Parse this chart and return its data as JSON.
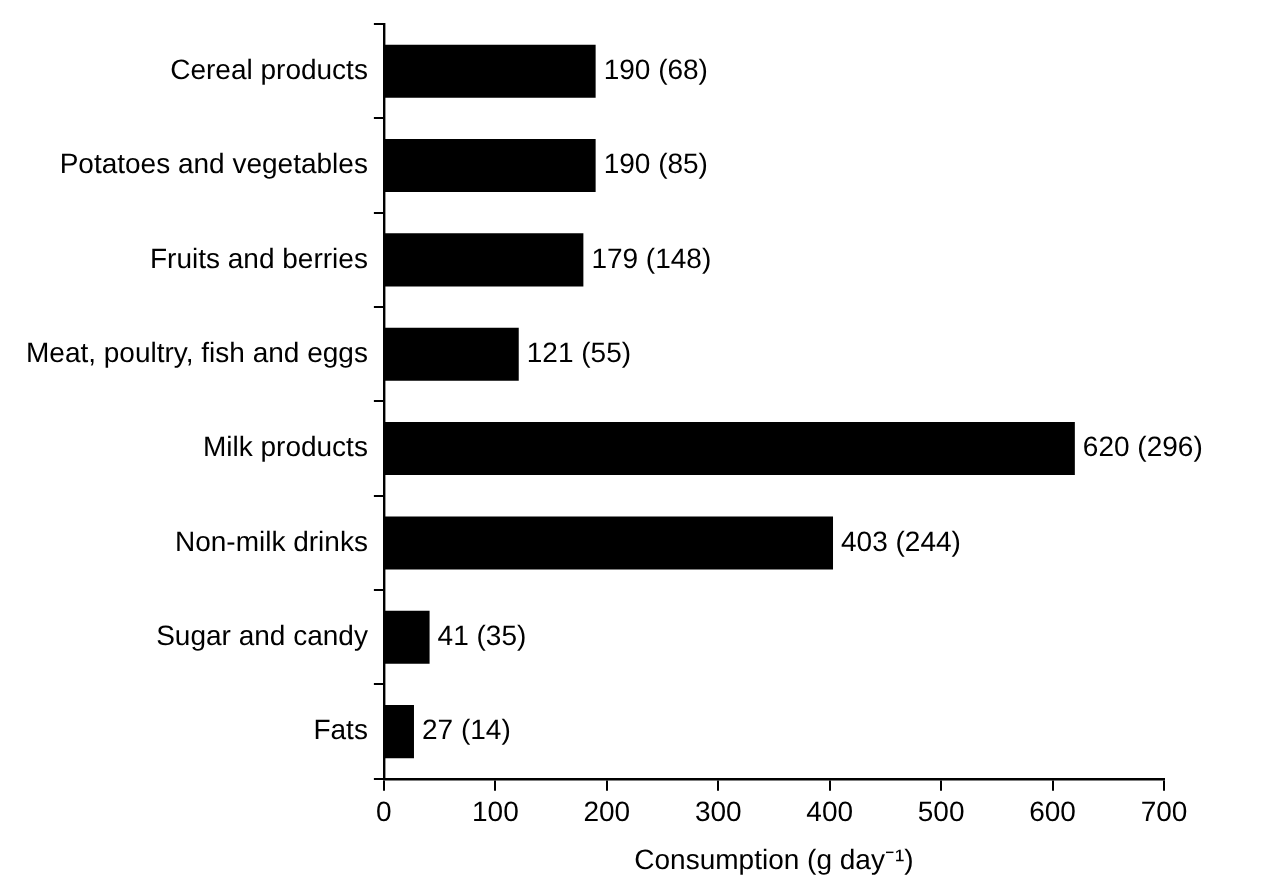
{
  "chart_data": {
    "type": "bar",
    "orientation": "horizontal",
    "xlabel": "Consumption (g day⁻¹)",
    "categories": [
      "Cereal products",
      "Potatoes and vegetables",
      "Fruits and berries",
      "Meat, poultry, fish and eggs",
      "Milk products",
      "Non-milk drinks",
      "Sugar and candy",
      "Fats"
    ],
    "values": [
      190,
      190,
      179,
      121,
      620,
      403,
      41,
      27
    ],
    "value_labels": [
      "190 (68)",
      "190 (85)",
      "179 (148)",
      "121 (55)",
      "620 (296)",
      "403 (244)",
      "41 (35)",
      "27 (14)"
    ],
    "color": "#000000",
    "xlim": [
      0,
      700
    ],
    "xticks": [
      0,
      100,
      200,
      300,
      400,
      500,
      600,
      700
    ],
    "grid": false,
    "legend": false
  }
}
